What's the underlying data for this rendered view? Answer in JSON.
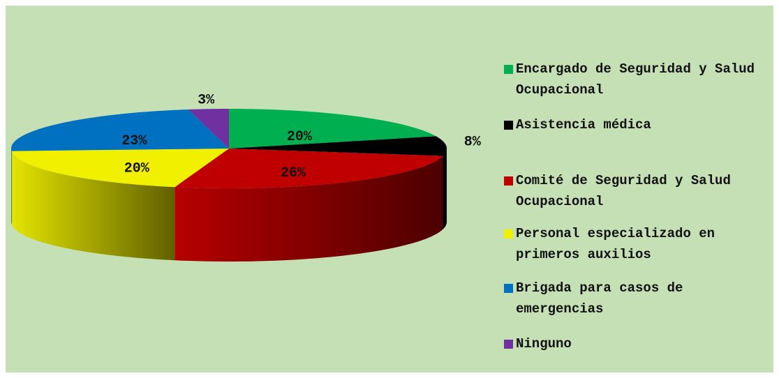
{
  "chart_data": {
    "type": "pie",
    "categories": [
      "Encargado de Seguridad y Salud Ocupacional",
      "Asistencia médica",
      "Comité de Seguridad y Salud Ocupacional",
      "Personal especializado en primeros auxilios",
      "Brigada para casos de emergencias",
      "Ninguno"
    ],
    "values": [
      20,
      8,
      26,
      20,
      23,
      3
    ],
    "value_labels": [
      "20%",
      "8%",
      "26%",
      "20%",
      "23%",
      "3%"
    ],
    "colors": [
      "#00b050",
      "#000000",
      "#c00000",
      "#f0f000",
      "#0070c0",
      "#7030a0"
    ],
    "legend": "right"
  }
}
